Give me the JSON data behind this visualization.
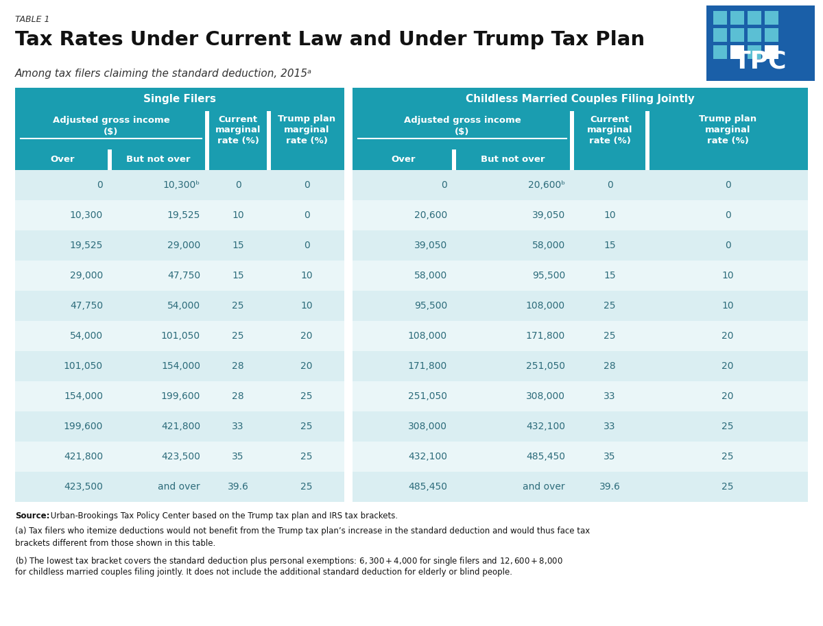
{
  "table_label": "TABLE 1",
  "title": "Tax Rates Under Current Law and Under Trump Tax Plan",
  "subtitle": "Among tax filers claiming the standard deduction, 2015ᵃ",
  "header_bg": "#1a9db0",
  "row_bg_even": "#daeef2",
  "row_bg_odd": "#eaf6f8",
  "header_text_color": "#ffffff",
  "data_text_color": "#2c6b7a",
  "tpc_blue_dark": "#1a5fa8",
  "tpc_blue_light": "#5bbfd4",
  "single_filers_header": "Single Filers",
  "married_header": "Childless Married Couples Filing Jointly",
  "single_rows": [
    [
      "0",
      "10,300ᵇ",
      "0",
      "0"
    ],
    [
      "10,300",
      "19,525",
      "10",
      "0"
    ],
    [
      "19,525",
      "29,000",
      "15",
      "0"
    ],
    [
      "29,000",
      "47,750",
      "15",
      "10"
    ],
    [
      "47,750",
      "54,000",
      "25",
      "10"
    ],
    [
      "54,000",
      "101,050",
      "25",
      "20"
    ],
    [
      "101,050",
      "154,000",
      "28",
      "20"
    ],
    [
      "154,000",
      "199,600",
      "28",
      "25"
    ],
    [
      "199,600",
      "421,800",
      "33",
      "25"
    ],
    [
      "421,800",
      "423,500",
      "35",
      "25"
    ],
    [
      "423,500",
      "and over",
      "39.6",
      "25"
    ]
  ],
  "married_rows": [
    [
      "0",
      "20,600ᵇ",
      "0",
      "0"
    ],
    [
      "20,600",
      "39,050",
      "10",
      "0"
    ],
    [
      "39,050",
      "58,000",
      "15",
      "0"
    ],
    [
      "58,000",
      "95,500",
      "15",
      "10"
    ],
    [
      "95,500",
      "108,000",
      "25",
      "10"
    ],
    [
      "108,000",
      "171,800",
      "25",
      "20"
    ],
    [
      "171,800",
      "251,050",
      "28",
      "20"
    ],
    [
      "251,050",
      "308,000",
      "33",
      "20"
    ],
    [
      "308,000",
      "432,100",
      "33",
      "25"
    ],
    [
      "432,100",
      "485,450",
      "35",
      "25"
    ],
    [
      "485,450",
      "and over",
      "39.6",
      "25"
    ]
  ],
  "footnote_source_bold": "Source:",
  "footnote_source_rest": " Urban-Brookings Tax Policy Center based on the Trump tax plan and IRS tax brackets.",
  "footnote_a": "(a) Tax filers who itemize deductions would not benefit from the Trump tax plan’s increase in the standard deduction and would thus face tax brackets different from those shown in this table.",
  "footnote_b": "(b) The lowest tax bracket covers the standard deduction plus personal exemptions: $6,300 + $4,000 for single filers and $12,600 + $8,000 for childless married couples filing jointly. It does not include the additional standard deduction for elderly or blind people."
}
